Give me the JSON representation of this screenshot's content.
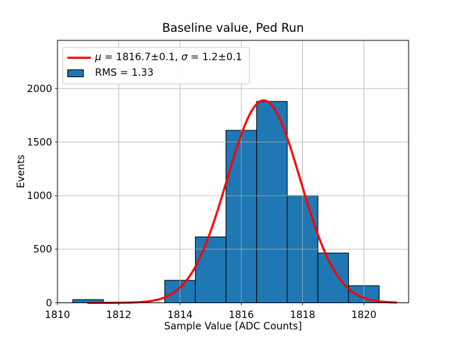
{
  "chart_data": {
    "type": "histogram",
    "title": "Baseline value, Ped Run",
    "xlabel": "Sample Value [ADC Counts]",
    "ylabel": "Events",
    "xlim": [
      1810,
      1821.46
    ],
    "ylim": [
      0,
      2450
    ],
    "xticks": [
      1810,
      1812,
      1814,
      1816,
      1818,
      1820
    ],
    "yticks": [
      0,
      500,
      1000,
      1500,
      2000
    ],
    "grid": true,
    "histogram": {
      "bin_width": 1,
      "bin_centers": [
        1811,
        1812,
        1813,
        1814,
        1815,
        1816,
        1817,
        1818,
        1819,
        1820
      ],
      "counts": [
        30,
        0,
        0,
        210,
        615,
        1610,
        1880,
        1000,
        465,
        160
      ],
      "fill_color": "#1f77b4",
      "edge_color": "#000000"
    },
    "fit_curve": {
      "type": "gaussian",
      "mu": 1816.73,
      "sigma": 1.2,
      "amplitude": 1890,
      "x_start": 1811,
      "x_end": 1821.05,
      "color": "#ff0000",
      "linewidth": 3
    },
    "legend": {
      "position": "upper left",
      "entries": [
        {
          "swatch": "line",
          "color": "#ff0000",
          "label": "μ = 1816.7±0.1, σ = 1.2±0.1",
          "segments": [
            {
              "text": "μ",
              "italic": true
            },
            {
              "text": " = 1816.7±0.1, ",
              "italic": false
            },
            {
              "text": "σ",
              "italic": true
            },
            {
              "text": " = 1.2±0.1",
              "italic": false
            }
          ]
        },
        {
          "swatch": "patch",
          "color": "#1f77b4",
          "label": "RMS = 1.33",
          "segments": [
            {
              "text": "RMS = 1.33",
              "italic": false
            }
          ]
        }
      ]
    },
    "colors": {
      "grid": "#b0b0b0",
      "spine": "#000000",
      "tick_text": "#000000",
      "background": "#ffffff"
    }
  }
}
